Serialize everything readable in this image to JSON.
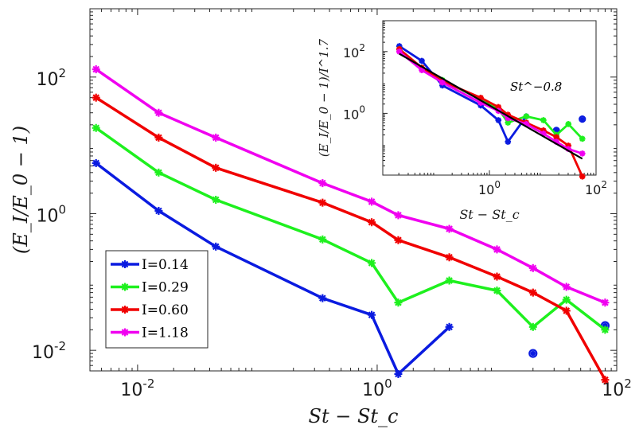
{
  "chart_data": [
    {
      "type": "line",
      "xscale": "log",
      "yscale": "log",
      "xlim": [
        0.004,
        100
      ],
      "ylim": [
        0.005,
        1000
      ],
      "xticks": [
        0.01,
        1,
        100
      ],
      "xtick_labels": [
        {
          "base": "10",
          "exp": "-2"
        },
        {
          "base": "10",
          "exp": "0"
        },
        {
          "base": "10",
          "exp": "2"
        }
      ],
      "yticks": [
        0.01,
        1,
        100
      ],
      "ytick_labels": [
        {
          "base": "10",
          "exp": "-2"
        },
        {
          "base": "10",
          "exp": "0"
        },
        {
          "base": "10",
          "exp": "2"
        }
      ],
      "xlabel": "St − St_c",
      "ylabel": "(E_I/E_0 − 1)",
      "grid": false,
      "legend_position": "bottom-left",
      "series": [
        {
          "name": "I=0.14",
          "color": "#0a1be0",
          "points": [
            [
              0.0045,
              5.5
            ],
            [
              0.015,
              1.1
            ],
            [
              0.045,
              0.33
            ],
            [
              0.35,
              0.058
            ],
            [
              0.9,
              0.033
            ],
            [
              1.5,
              0.0045
            ],
            [
              4.0,
              0.022
            ]
          ],
          "extra_markers": [
            [
              20,
              0.009
            ],
            [
              80,
              0.023
            ]
          ]
        },
        {
          "name": "I=0.29",
          "color": "#1ef01e",
          "points": [
            [
              0.0045,
              18
            ],
            [
              0.015,
              4.0
            ],
            [
              0.045,
              1.6
            ],
            [
              0.35,
              0.42
            ],
            [
              0.9,
              0.19
            ],
            [
              1.5,
              0.05
            ],
            [
              4.0,
              0.105
            ],
            [
              10,
              0.075
            ],
            [
              20,
              0.022
            ],
            [
              38,
              0.055
            ],
            [
              80,
              0.02
            ]
          ]
        },
        {
          "name": "I=0.60",
          "color": "#f00000",
          "points": [
            [
              0.0045,
              50
            ],
            [
              0.015,
              13
            ],
            [
              0.045,
              4.7
            ],
            [
              0.35,
              1.45
            ],
            [
              0.9,
              0.75
            ],
            [
              1.5,
              0.41
            ],
            [
              4.0,
              0.23
            ],
            [
              10,
              0.12
            ],
            [
              20,
              0.07
            ],
            [
              38,
              0.038
            ],
            [
              80,
              0.0037
            ]
          ]
        },
        {
          "name": "I=1.18",
          "color": "#f000f0",
          "points": [
            [
              0.0045,
              130
            ],
            [
              0.015,
              30
            ],
            [
              0.045,
              13
            ],
            [
              0.35,
              2.8
            ],
            [
              0.9,
              1.5
            ],
            [
              1.5,
              0.95
            ],
            [
              4.0,
              0.6
            ],
            [
              10,
              0.3
            ],
            [
              20,
              0.16
            ],
            [
              38,
              0.085
            ],
            [
              80,
              0.05
            ]
          ]
        }
      ]
    },
    {
      "type": "line",
      "inset": true,
      "xscale": "log",
      "yscale": "log",
      "xlim": [
        0.01,
        100
      ],
      "ylim": [
        0.01,
        1000
      ],
      "xticks": [
        1,
        100
      ],
      "xtick_labels": [
        {
          "base": "10",
          "exp": "0"
        },
        {
          "base": "10",
          "exp": "2"
        }
      ],
      "yticks": [
        1,
        100
      ],
      "ytick_labels": [
        {
          "base": "10",
          "exp": "0"
        },
        {
          "base": "10",
          "exp": "2"
        }
      ],
      "xlabel": "St − St_c",
      "ylabel": "(E_I/E_0 − 1)/I^1.7",
      "annotation": "St^−0.8",
      "fit_line": {
        "color": "#000000",
        "exponent": -0.8,
        "x": [
          0.0045,
          80
        ]
      },
      "series": [
        {
          "name": "I=0.14",
          "color": "#0a1be0",
          "points": [
            [
              0.0045,
              150
            ],
            [
              0.015,
              50
            ],
            [
              0.045,
              8
            ],
            [
              0.35,
              1.8
            ],
            [
              0.9,
              0.6
            ],
            [
              1.5,
              0.12
            ],
            [
              4.0,
              0.8
            ]
          ],
          "extra_markers": [
            [
              20,
              0.28
            ],
            [
              80,
              0.65
            ]
          ]
        },
        {
          "name": "I=0.29",
          "color": "#1ef01e",
          "points": [
            [
              0.0045,
              120
            ],
            [
              0.015,
              30
            ],
            [
              0.045,
              12
            ],
            [
              0.35,
              2.8
            ],
            [
              0.9,
              1.4
            ],
            [
              1.5,
              0.5
            ],
            [
              4.0,
              0.8
            ],
            [
              10,
              0.6
            ],
            [
              20,
              0.2
            ],
            [
              38,
              0.45
            ],
            [
              80,
              0.15
            ]
          ]
        },
        {
          "name": "I=0.60",
          "color": "#f00000",
          "points": [
            [
              0.0045,
              120
            ],
            [
              0.015,
              30
            ],
            [
              0.045,
              11
            ],
            [
              0.35,
              3.2
            ],
            [
              0.9,
              1.6
            ],
            [
              1.5,
              0.9
            ],
            [
              4.0,
              0.5
            ],
            [
              10,
              0.28
            ],
            [
              20,
              0.17
            ],
            [
              38,
              0.09
            ],
            [
              80,
              0.009
            ]
          ]
        },
        {
          "name": "I=1.18",
          "color": "#f000f0",
          "points": [
            [
              0.0045,
              100
            ],
            [
              0.015,
              25
            ],
            [
              0.045,
              10
            ],
            [
              0.35,
              2.2
            ],
            [
              0.9,
              1.2
            ],
            [
              1.5,
              0.7
            ],
            [
              4.0,
              0.45
            ],
            [
              10,
              0.22
            ],
            [
              20,
              0.12
            ],
            [
              38,
              0.07
            ],
            [
              80,
              0.05
            ]
          ]
        }
      ]
    }
  ]
}
